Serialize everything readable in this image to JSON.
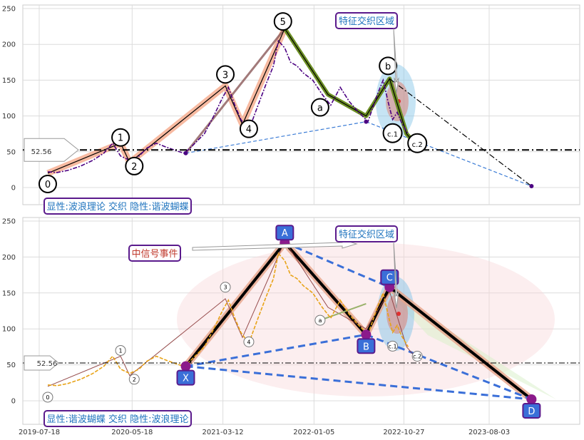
{
  "chart_data": [
    {
      "type": "line",
      "panel": "top",
      "ylim": [
        -30,
        255
      ],
      "yticks": [
        0,
        50,
        100,
        150,
        200,
        250
      ],
      "grid": true,
      "hline": {
        "value": 52.56,
        "label": "52.56"
      },
      "series": [
        {
          "role": "price",
          "color": "#4b0082",
          "style": "dash-dot",
          "x": [
            "2019-08-15",
            "2019-09-15",
            "2019-10-20",
            "2019-12-01",
            "2020-01-10",
            "2020-02-15",
            "2020-03-15",
            "2020-04-10",
            "2020-05-10",
            "2020-06-10",
            "2020-07-05",
            "2020-08-05",
            "2020-09-10",
            "2020-10-20",
            "2020-11-05",
            "2020-12-01",
            "2021-01-10",
            "2021-02-10",
            "2021-03-10",
            "2021-03-30",
            "2021-04-20",
            "2021-05-10",
            "2021-06-05",
            "2021-07-01",
            "2021-08-01",
            "2021-08-25",
            "2021-09-10",
            "2021-10-01",
            "2021-10-20",
            "2021-11-10",
            "2021-12-01",
            "2022-01-01",
            "2022-02-01",
            "2022-03-01",
            "2022-04-01",
            "2022-05-01",
            "2022-06-01",
            "2022-07-01",
            "2022-08-01",
            "2022-08-20",
            "2022-09-05",
            "2022-09-20",
            "2022-10-05",
            "2022-10-20",
            "2022-11-10"
          ],
          "values": [
            22,
            21,
            24,
            30,
            38,
            48,
            62,
            44,
            38,
            44,
            55,
            62,
            56,
            50,
            48,
            58,
            75,
            100,
            125,
            140,
            115,
            95,
            80,
            110,
            145,
            170,
            205,
            195,
            175,
            170,
            160,
            150,
            130,
            115,
            140,
            120,
            105,
            92,
            130,
            150,
            120,
            95,
            105,
            90,
            75
          ]
        },
        {
          "role": "wave-path",
          "color": "#000000",
          "x": [
            "2019-08-15",
            "2020-04-10",
            "2020-05-10",
            "2021-03-20",
            "2021-05-15",
            "2021-10-01",
            "2022-02-20",
            "2022-06-25",
            "2022-09-10",
            "2022-11-05",
            "2022-12-10"
          ],
          "values": [
            20,
            62,
            35,
            142,
            88,
            222,
            130,
            100,
            152,
            75,
            58
          ]
        }
      ],
      "wave_labels": [
        {
          "text": "0",
          "x": "2019-08-15",
          "y": 5
        },
        {
          "text": "1",
          "x": "2020-04-10",
          "y": 70
        },
        {
          "text": "2",
          "x": "2020-05-25",
          "y": 30
        },
        {
          "text": "3",
          "x": "2021-03-20",
          "y": 158
        },
        {
          "text": "4",
          "x": "2021-06-05",
          "y": 82
        },
        {
          "text": "5",
          "x": "2021-09-25",
          "y": 232
        },
        {
          "text": "a",
          "x": "2022-01-25",
          "y": 112
        },
        {
          "text": "b",
          "x": "2022-09-05",
          "y": 170
        },
        {
          "text": "c.1",
          "x": "2022-09-20",
          "y": 76
        },
        {
          "text": "c.2",
          "x": "2022-12-10",
          "y": 62
        }
      ],
      "annotations": [
        "特征交织区域",
        "显性:波浪理论 交织 隐性:谐波蝴蝶"
      ]
    },
    {
      "type": "line",
      "panel": "bottom",
      "ylim": [
        -30,
        255
      ],
      "yticks": [
        0,
        50,
        100,
        150,
        200,
        250
      ],
      "grid": true,
      "hline": {
        "value": 52.56,
        "label": "52.56"
      },
      "xticks": [
        "2019-07-18",
        "2020-05-18",
        "2021-03-12",
        "2022-01-05",
        "2022-10-27",
        "2023-08-03"
      ],
      "series": [
        {
          "role": "price",
          "color": "#e8a317",
          "style": "dash",
          "x": [
            "2019-08-15",
            "2019-09-15",
            "2019-10-20",
            "2019-12-01",
            "2020-01-10",
            "2020-02-15",
            "2020-03-15",
            "2020-04-10",
            "2020-05-10",
            "2020-06-10",
            "2020-07-05",
            "2020-08-05",
            "2020-09-10",
            "2020-10-20",
            "2020-11-05",
            "2020-12-01",
            "2021-01-10",
            "2021-02-10",
            "2021-03-10",
            "2021-03-30",
            "2021-04-20",
            "2021-05-10",
            "2021-06-05",
            "2021-07-01",
            "2021-08-01",
            "2021-08-25",
            "2021-09-10",
            "2021-10-01",
            "2021-10-20",
            "2021-11-10",
            "2021-12-01",
            "2022-01-01",
            "2022-02-01",
            "2022-03-01",
            "2022-04-01",
            "2022-05-01",
            "2022-06-01",
            "2022-07-01",
            "2022-08-01",
            "2022-08-20",
            "2022-09-05",
            "2022-09-20",
            "2022-10-05",
            "2022-10-20",
            "2022-11-10"
          ],
          "values": [
            22,
            21,
            24,
            30,
            38,
            48,
            62,
            44,
            38,
            44,
            55,
            62,
            56,
            50,
            48,
            58,
            75,
            100,
            125,
            140,
            115,
            95,
            80,
            110,
            145,
            170,
            205,
            195,
            175,
            170,
            160,
            150,
            130,
            115,
            140,
            120,
            105,
            92,
            130,
            150,
            120,
            95,
            105,
            90,
            75
          ]
        }
      ],
      "harmonic_points": [
        {
          "text": "X",
          "x": "2020-11-10",
          "y": 48
        },
        {
          "text": "A",
          "x": "2021-10-01",
          "y": 220
        },
        {
          "text": "B",
          "x": "2022-06-25",
          "y": 92
        },
        {
          "text": "C",
          "x": "2022-09-10",
          "y": 158
        },
        {
          "text": "D",
          "x": "2023-12-20",
          "y": 2
        }
      ],
      "wave_labels": [
        {
          "text": "0",
          "x": "2019-08-15",
          "y": 5
        },
        {
          "text": "1",
          "x": "2020-04-10",
          "y": 70
        },
        {
          "text": "2",
          "x": "2020-05-25",
          "y": 30
        },
        {
          "text": "3",
          "x": "2021-03-20",
          "y": 158
        },
        {
          "text": "4",
          "x": "2021-06-05",
          "y": 82
        },
        {
          "text": "a",
          "x": "2022-01-25",
          "y": 112
        },
        {
          "text": "c.1",
          "x": "2022-09-20",
          "y": 76
        },
        {
          "text": "c.2",
          "x": "2022-12-10",
          "y": 62
        }
      ],
      "annotations": [
        "中信号事件",
        "特征交织区域",
        "显性:谐波蝴蝶 交织 隐性:波浪理论"
      ]
    }
  ]
}
